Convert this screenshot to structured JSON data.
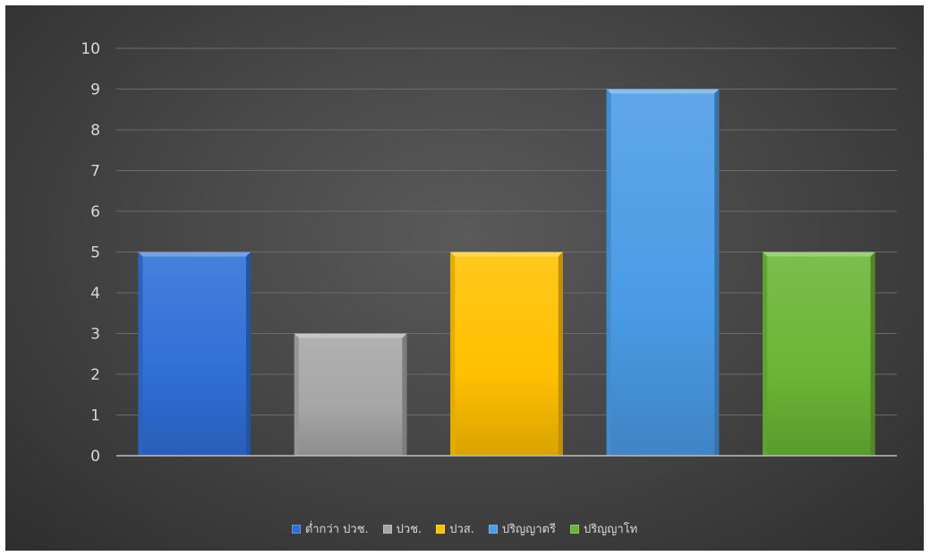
{
  "chart_data": {
    "type": "bar",
    "title": "",
    "xlabel": "",
    "ylabel": "",
    "categories": [
      "ต่ำกว่า ปวช.",
      "ปวช.",
      "ปวส.",
      "ปริญญาตรี",
      "ปริญญาโท"
    ],
    "values": [
      5,
      3,
      5,
      9,
      5
    ],
    "colors": [
      "#2f6fd6",
      "#a6a6a6",
      "#ffc000",
      "#4a9be5",
      "#6ab535"
    ],
    "ylim": [
      0,
      10
    ],
    "yticks": [
      0,
      1,
      2,
      3,
      4,
      5,
      6,
      7,
      8,
      9,
      10
    ],
    "grid": true,
    "legend_position": "bottom",
    "background": "#474747"
  }
}
